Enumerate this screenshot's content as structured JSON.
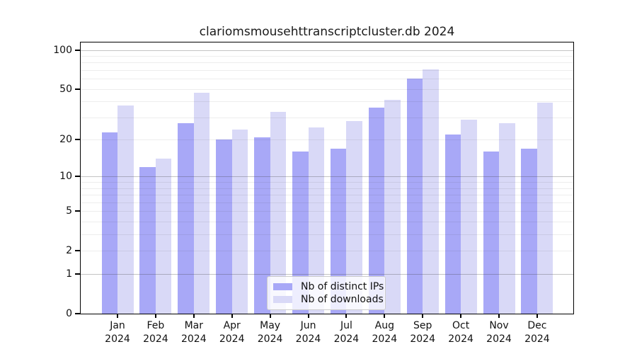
{
  "chart_data": {
    "type": "bar",
    "title": "clariomsmousehttranscriptcluster.db 2024",
    "year": "2024",
    "months": [
      "Jan",
      "Feb",
      "Mar",
      "Apr",
      "May",
      "Jun",
      "Jul",
      "Aug",
      "Sep",
      "Oct",
      "Nov",
      "Dec"
    ],
    "series": [
      {
        "name": "Nb of distinct IPs",
        "color": "#a8a8f7",
        "values": [
          23,
          12,
          27,
          20,
          21,
          16,
          17,
          36,
          60,
          22,
          16,
          17
        ]
      },
      {
        "name": "Nb of downloads",
        "color": "#d9d9f7",
        "values": [
          37,
          14,
          47,
          24,
          33,
          25,
          28,
          41,
          71,
          29,
          27,
          39
        ]
      }
    ],
    "y_axis": {
      "scale": "log1p",
      "tick_labels": [
        0,
        1,
        2,
        5,
        10,
        20,
        50,
        100
      ],
      "major_gridlines": [
        1,
        10,
        100
      ],
      "minor_gridlines": [
        2,
        3,
        4,
        5,
        6,
        7,
        8,
        9,
        20,
        30,
        40,
        50,
        60,
        70,
        80,
        90
      ],
      "ylim": [
        0,
        113
      ]
    },
    "grid": true,
    "legend_position": "inside-bottom-center",
    "colors": {
      "frame": "#000000",
      "major_grid": "#c4c4c4",
      "minor_grid": "#ededed",
      "background": "#ffffff"
    }
  }
}
